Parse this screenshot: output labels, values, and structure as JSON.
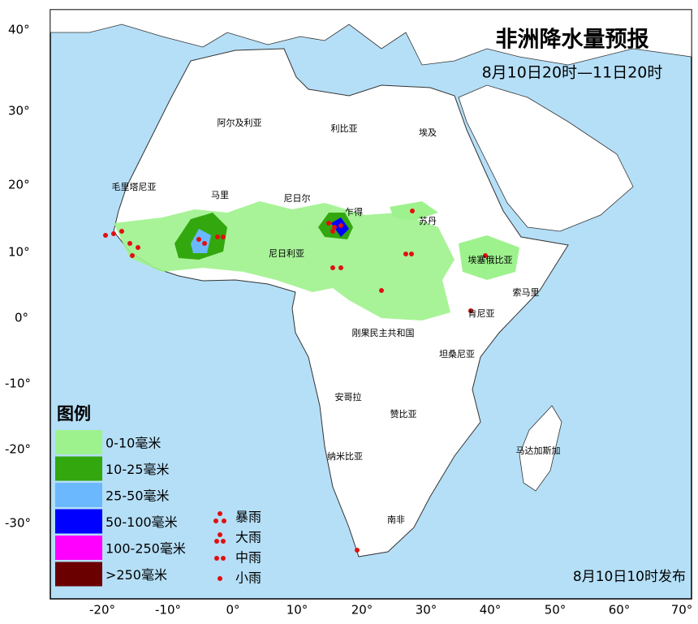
{
  "header": {
    "title": "非洲降水量预报",
    "subtitle": "8月10日20时—11日20时"
  },
  "issued": "8月10日10时发布",
  "lat_labels": [
    "40°",
    "30°",
    "20°",
    "10°",
    "0°",
    "-10°",
    "-20°",
    "-30°"
  ],
  "lon_labels": [
    "-20°",
    "-10°",
    "0°",
    "10°",
    "20°",
    "30°",
    "40°",
    "50°",
    "60°",
    "70°"
  ],
  "countries": [
    "阿尔及利亚",
    "利比亚",
    "埃及",
    "毛里塔尼亚",
    "马里",
    "尼日尔",
    "乍得",
    "苏丹",
    "尼日利亚",
    "埃塞俄比亚",
    "索马里",
    "肯尼亚",
    "刚果民主共和国",
    "坦桑尼亚",
    "安哥拉",
    "赞比亚",
    "纳米比亚",
    "马达加斯加",
    "南非"
  ],
  "legend": {
    "title": "图例",
    "items": [
      {
        "label": "0-10毫米",
        "color": "#9ef28d"
      },
      {
        "label": "10-25毫米",
        "color": "#33a80e"
      },
      {
        "label": "25-50毫米",
        "color": "#6bb8ff"
      },
      {
        "label": "50-100毫米",
        "color": "#0000ff"
      },
      {
        "label": "100-250毫米",
        "color": "#ff00ff"
      },
      {
        "label": ">250毫米",
        "color": "#6b0000"
      }
    ],
    "symbols": [
      "暴雨",
      "大雨",
      "中雨",
      "小雨"
    ]
  }
}
